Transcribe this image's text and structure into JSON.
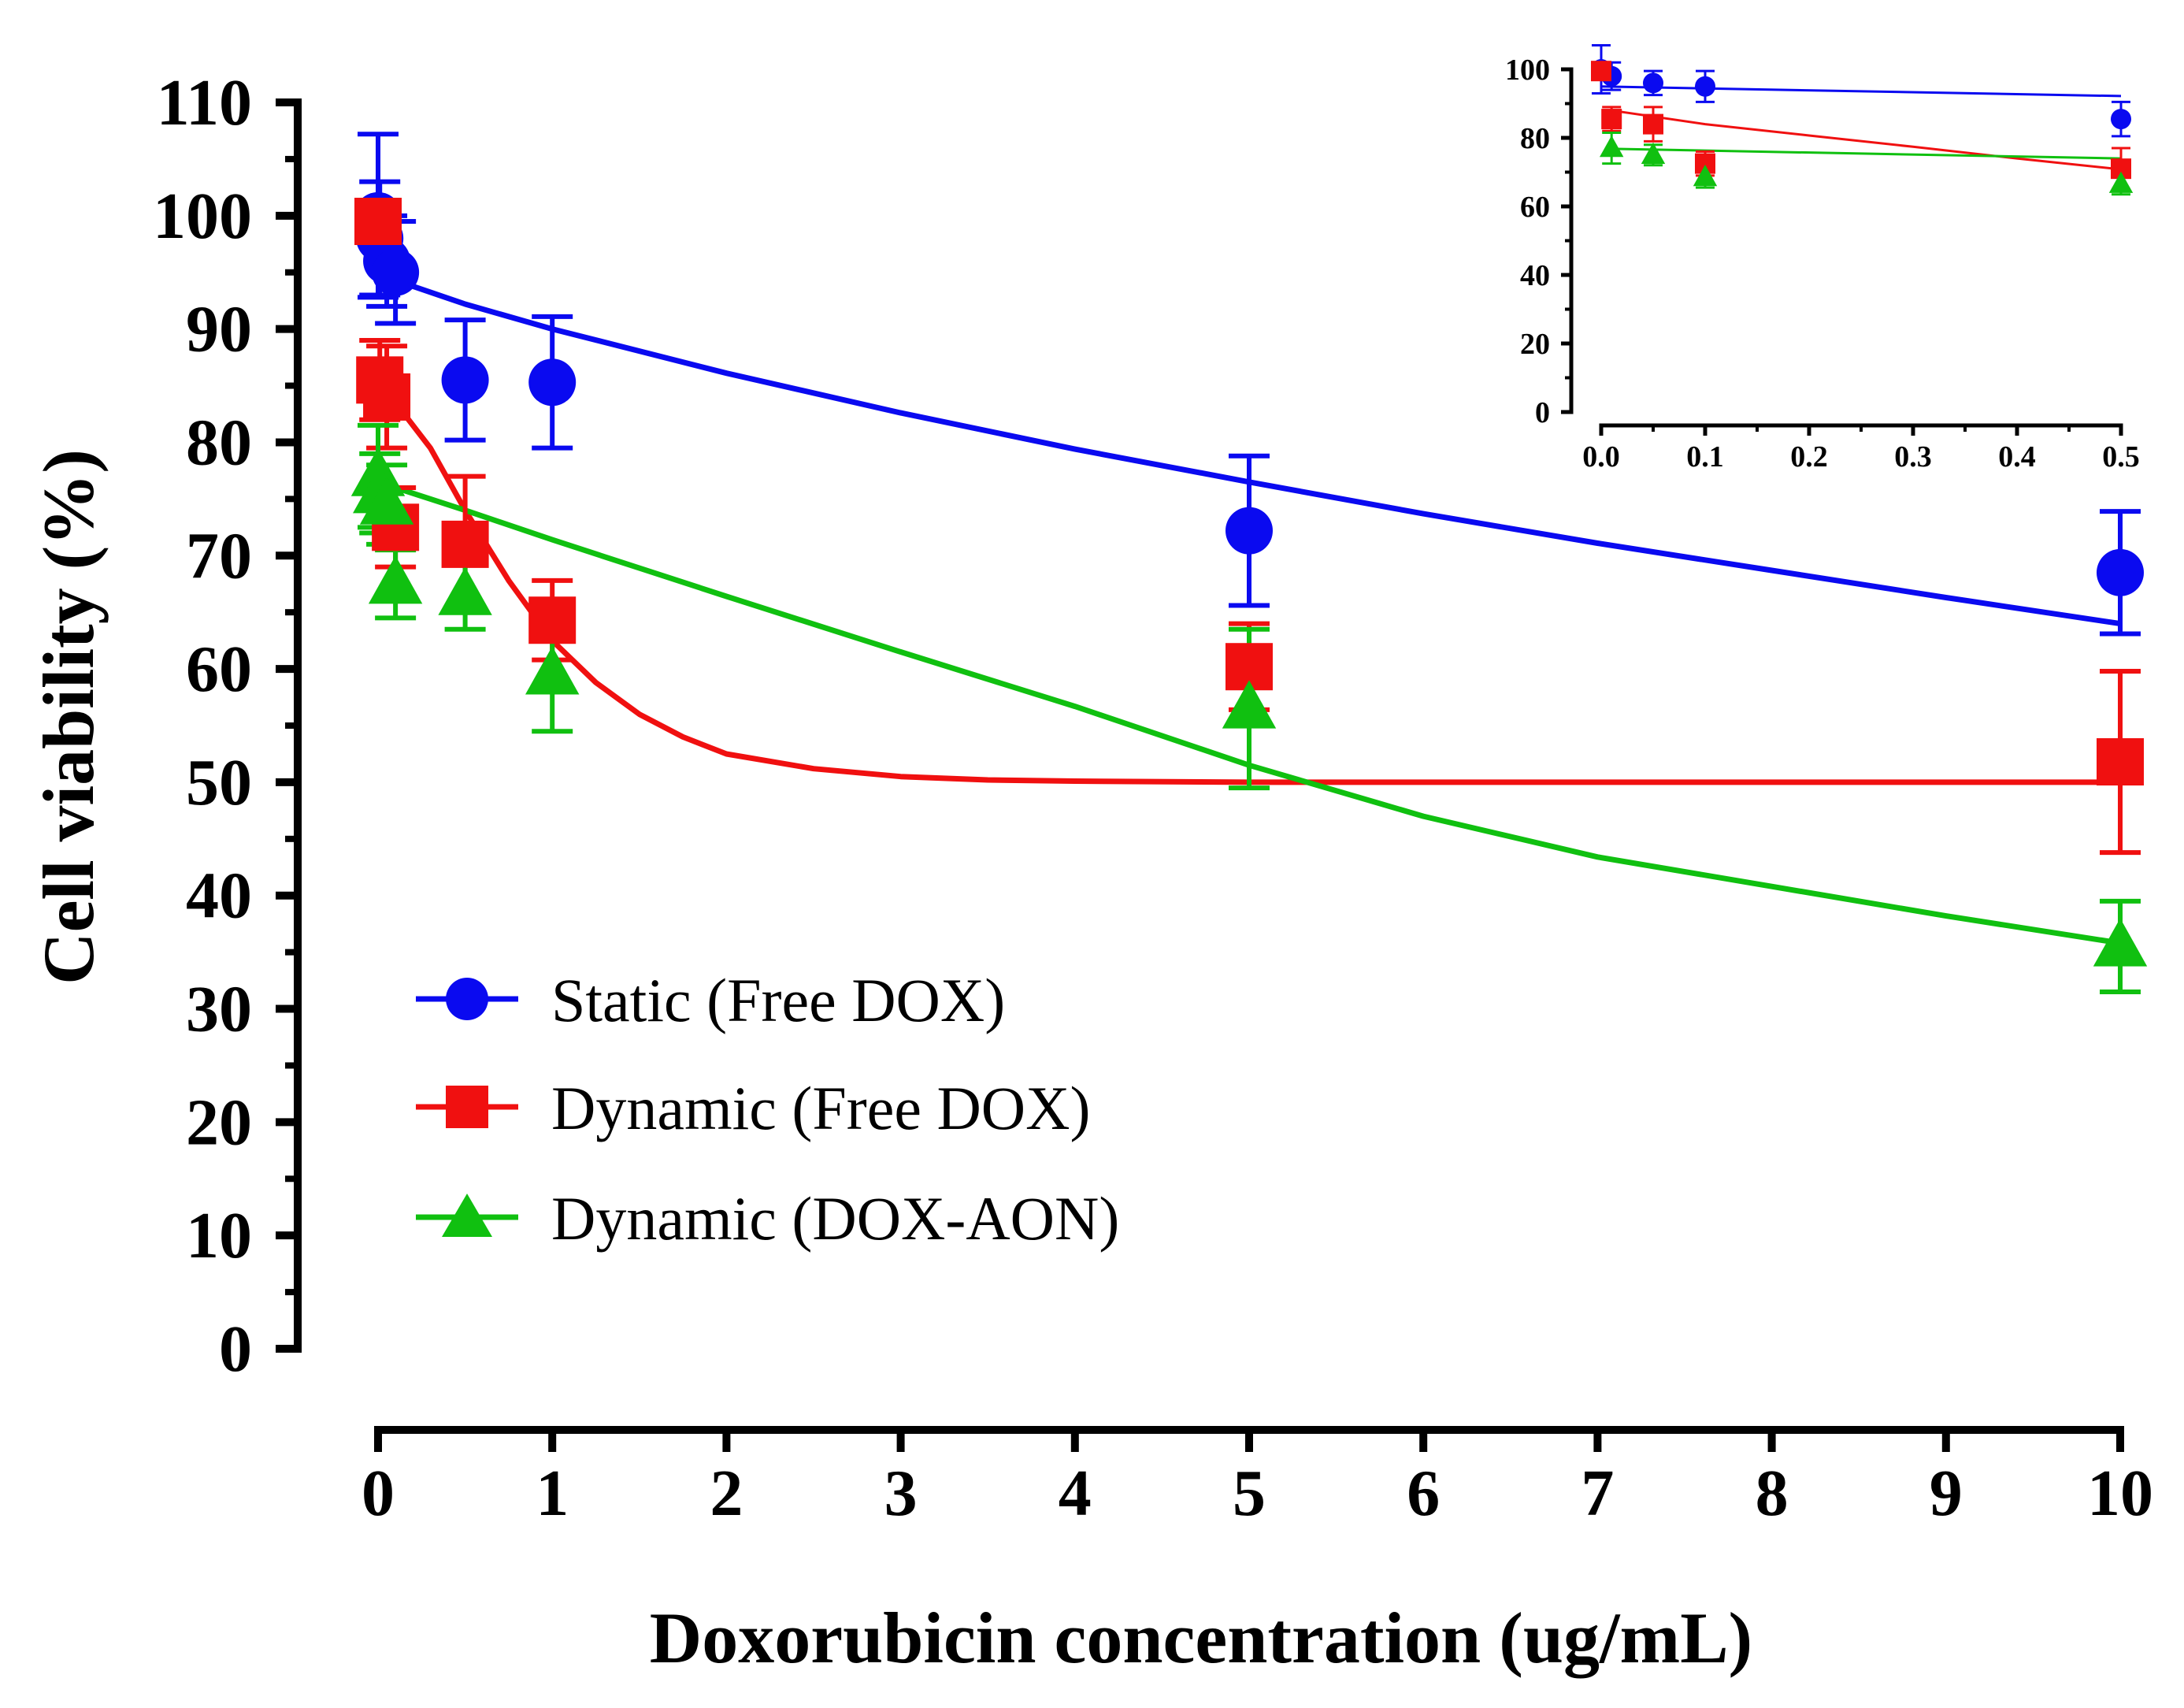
{
  "chart_data": [
    {
      "id": "main",
      "type": "scatter",
      "xlabel": "Doxorubicin concentration (ug/mL)",
      "ylabel": "Cell viability (%)",
      "xlim": [
        0,
        10
      ],
      "ylim": [
        0,
        110
      ],
      "xticks": [
        0,
        1,
        2,
        3,
        4,
        5,
        6,
        7,
        8,
        9,
        10
      ],
      "yticks": [
        0,
        10,
        20,
        30,
        40,
        50,
        60,
        70,
        80,
        90,
        100,
        110
      ],
      "xtick_labels": [
        "0",
        "1",
        "2",
        "3",
        "4",
        "5",
        "6",
        "7",
        "8",
        "9",
        "10"
      ],
      "ytick_labels": [
        "0",
        "10",
        "20",
        "30",
        "40",
        "50",
        "60",
        "70",
        "80",
        "90",
        "100",
        "110"
      ],
      "legend_position": "lower-left",
      "series": [
        {
          "name": "Static (Free DOX)",
          "color": "#0a0af0",
          "marker": "circle",
          "x": [
            0,
            0.01,
            0.05,
            0.1,
            0.5,
            1,
            5,
            10
          ],
          "y": [
            100,
            98,
            96,
            95,
            85.5,
            85.3,
            72.2,
            68.5
          ],
          "err": [
            7.2,
            5,
            4,
            4.5,
            5.3,
            5.8,
            6.6,
            5.4
          ],
          "fit_x": [
            0,
            0.1,
            0.5,
            1,
            2,
            3,
            4,
            5,
            6,
            7,
            8,
            9,
            10
          ],
          "fit_y": [
            95,
            94.3,
            92.2,
            90,
            86.1,
            82.6,
            79.4,
            76.5,
            73.7,
            71.1,
            68.7,
            66.3,
            64
          ]
        },
        {
          "name": "Dynamic (Free DOX)",
          "color": "#f01010",
          "marker": "square",
          "x": [
            0,
            0.01,
            0.05,
            0.1,
            0.5,
            1,
            5,
            10
          ],
          "y": [
            99.5,
            85.5,
            84,
            72.5,
            71,
            64.3,
            60.2,
            51.8
          ],
          "err": [
            1.8,
            3.5,
            4.5,
            3.5,
            6,
            3.5,
            3.8,
            8
          ],
          "fit_x": [
            0.1,
            0.3,
            0.5,
            0.75,
            1,
            1.25,
            1.5,
            1.75,
            2,
            2.5,
            3,
            3.5,
            4,
            5,
            6,
            8,
            10
          ],
          "fit_y": [
            83.5,
            79.5,
            74,
            67.8,
            62.5,
            58.8,
            56,
            54,
            52.5,
            51.2,
            50.5,
            50.2,
            50.1,
            50,
            50,
            50,
            50
          ]
        },
        {
          "name": "Dynamic (DOX-AON)",
          "color": "#10c010",
          "marker": "triangle",
          "x": [
            0,
            0.01,
            0.05,
            0.1,
            0.5,
            1,
            5,
            10
          ],
          "y": [
            77,
            75.5,
            74.5,
            67.5,
            66.5,
            59.5,
            56.5,
            35.5
          ],
          "err": [
            4.5,
            3.5,
            3.5,
            3,
            3,
            5,
            7,
            4
          ],
          "fit_x": [
            0,
            0.5,
            1,
            1.5,
            2,
            3,
            4,
            5,
            6,
            7,
            8,
            9,
            10
          ],
          "fit_y": [
            76.5,
            74,
            71.4,
            68.9,
            66.4,
            61.5,
            56.7,
            51.5,
            47,
            43.4,
            40.8,
            38.2,
            35.8
          ]
        }
      ]
    },
    {
      "id": "inset",
      "type": "scatter",
      "xlabel": "",
      "ylabel": "",
      "xlim": [
        0,
        0.5
      ],
      "ylim": [
        0,
        100
      ],
      "xticks": [
        0,
        0.1,
        0.2,
        0.3,
        0.4,
        0.5
      ],
      "yticks": [
        0,
        20,
        40,
        60,
        80,
        100
      ],
      "xtick_labels": [
        "0.0",
        "0.1",
        "0.2",
        "0.3",
        "0.4",
        "0.5"
      ],
      "ytick_labels": [
        "0",
        "20",
        "40",
        "60",
        "80",
        "100"
      ],
      "series": [
        {
          "name": "Static (Free DOX)",
          "color": "#0a0af0",
          "marker": "circle",
          "x": [
            0,
            0.01,
            0.05,
            0.1,
            0.5
          ],
          "y": [
            100,
            98,
            96,
            95,
            85.5
          ],
          "err": [
            7,
            4,
            3.5,
            4.5,
            5
          ],
          "fit_x": [
            0,
            0.5
          ],
          "fit_y": [
            95,
            92.2
          ]
        },
        {
          "name": "Dynamic (Free DOX)",
          "color": "#f01010",
          "marker": "square",
          "x": [
            0,
            0.01,
            0.05,
            0.1,
            0.5
          ],
          "y": [
            99.5,
            85.5,
            84,
            72.5,
            71
          ],
          "err": [
            2,
            3.5,
            5,
            3.5,
            6
          ],
          "fit_x": [
            0.01,
            0.1,
            0.2,
            0.3,
            0.4,
            0.5
          ],
          "fit_y": [
            88,
            84,
            80.7,
            77.4,
            74,
            70.8
          ]
        },
        {
          "name": "Dynamic (DOX-AON)",
          "color": "#10c010",
          "marker": "triangle",
          "x": [
            0.01,
            0.05,
            0.1,
            0.5
          ],
          "y": [
            77,
            75,
            68.5,
            66.5
          ],
          "err": [
            4.5,
            3,
            3,
            3
          ],
          "fit_x": [
            0.01,
            0.5
          ],
          "fit_y": [
            76.8,
            74
          ]
        }
      ]
    }
  ]
}
